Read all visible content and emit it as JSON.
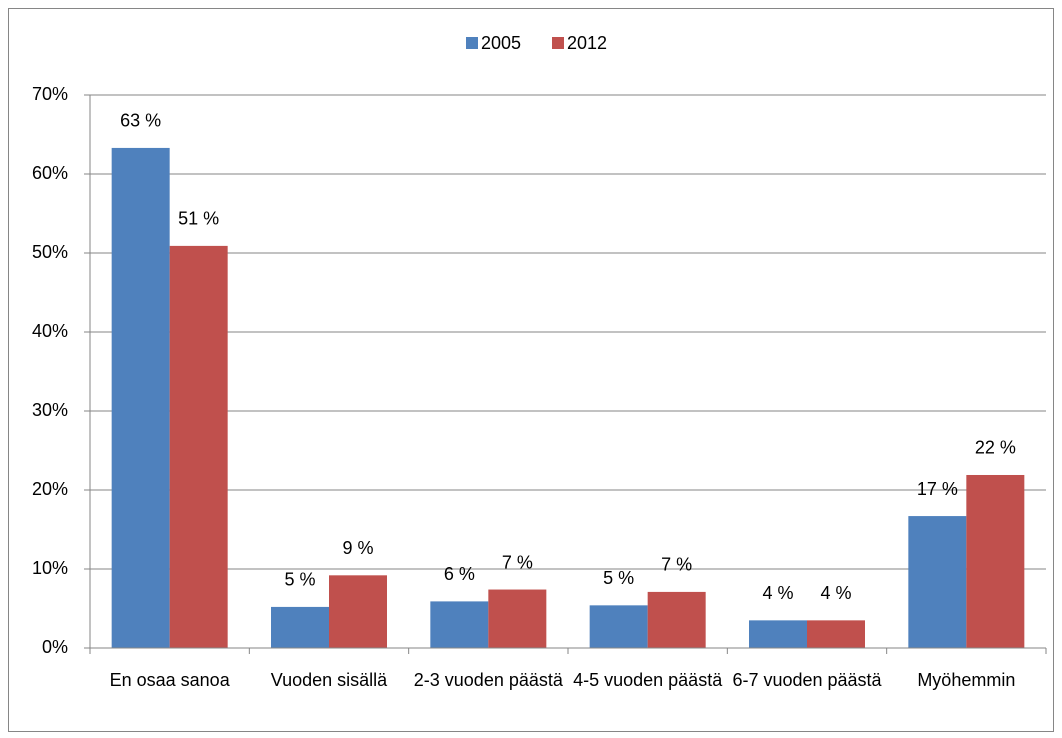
{
  "chart_data": {
    "type": "bar",
    "categories": [
      "En osaa sanoa",
      "Vuoden sisällä",
      "2-3 vuoden päästä",
      "4-5 vuoden päästä",
      "6-7 vuoden päästä",
      "Myöhemmin"
    ],
    "series": [
      {
        "name": "2005",
        "color": "#4f81bd",
        "values": [
          63.3,
          5.2,
          5.9,
          5.4,
          3.5,
          16.7
        ],
        "value_labels": [
          "63 %",
          "5 %",
          "6 %",
          "5 %",
          "4 %",
          "17 %"
        ]
      },
      {
        "name": "2012",
        "color": "#c0504d",
        "values": [
          50.9,
          9.2,
          7.4,
          7.1,
          3.5,
          21.9
        ],
        "value_labels": [
          "51 %",
          "9 %",
          "7 %",
          "7 %",
          "4 %",
          "22 %"
        ]
      }
    ],
    "ylim": [
      0,
      70
    ],
    "yticks": [
      {
        "value": 0,
        "label": "0%"
      },
      {
        "value": 10,
        "label": "10%"
      },
      {
        "value": 20,
        "label": "20%"
      },
      {
        "value": 30,
        "label": "30%"
      },
      {
        "value": 40,
        "label": "40%"
      },
      {
        "value": 50,
        "label": "50%"
      },
      {
        "value": 60,
        "label": "60%"
      },
      {
        "value": 70,
        "label": "70%"
      }
    ],
    "grid": true,
    "legend": "top"
  }
}
